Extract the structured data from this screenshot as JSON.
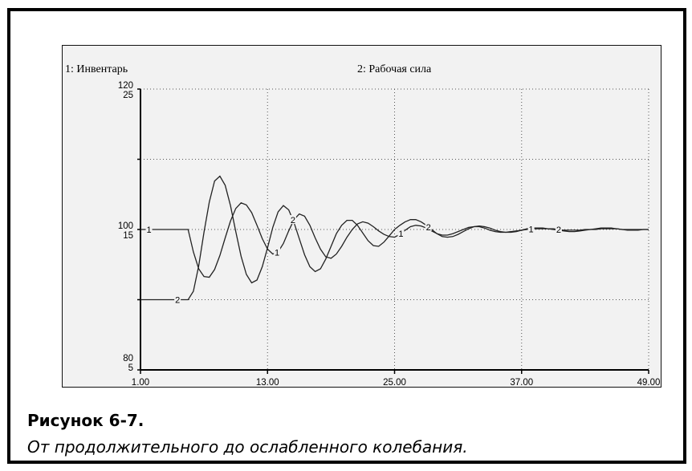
{
  "figure": {
    "caption_title": "Рисунок 6-7.",
    "caption_subtitle": "От продолжительного до ослабленного колебания."
  },
  "chart_data": {
    "type": "line",
    "x_ticks": [
      "1.00",
      "13.00",
      "25.00",
      "37.00",
      "49.00"
    ],
    "xlim": [
      1,
      49
    ],
    "y_axes": [
      {
        "ticks_top": "120",
        "ticks_mid": "100",
        "ticks_bottom": "80",
        "ylim": [
          80,
          120
        ]
      },
      {
        "ticks_top": "25",
        "ticks_mid": "15",
        "ticks_bottom": "5",
        "ylim": [
          5,
          25
        ]
      }
    ],
    "grid": true,
    "grid_style": "dotted",
    "colors": {
      "panel": "#f2f2f2",
      "line": "#222222",
      "grid": "#555555",
      "frame": "#000000"
    },
    "series": [
      {
        "name": "1: Инвентарь",
        "marker": "1",
        "axis": 0,
        "x": [
          1,
          2,
          3,
          4,
          5,
          5.5,
          6,
          6.5,
          7,
          7.5,
          8,
          8.5,
          9,
          9.5,
          10,
          10.5,
          11,
          11.5,
          12,
          12.5,
          13,
          13.5,
          14,
          14.5,
          15,
          15.5,
          16,
          16.5,
          17,
          17.5,
          18,
          18.5,
          19,
          19.5,
          20,
          20.5,
          21,
          21.5,
          22,
          22.5,
          23,
          23.5,
          24,
          24.5,
          25,
          25.5,
          26,
          26.5,
          27,
          27.5,
          28,
          28.5,
          29,
          29.5,
          30,
          30.5,
          31,
          31.5,
          32,
          32.5,
          33,
          33.5,
          34,
          34.5,
          35,
          35.5,
          36,
          36.5,
          37,
          37.5,
          38,
          38.5,
          39,
          39.5,
          40,
          40.5,
          41,
          41.5,
          42,
          42.5,
          43,
          43.5,
          44,
          44.5,
          45,
          45.5,
          46,
          46.5,
          47,
          47.5,
          48,
          48.5,
          49
        ],
        "y": [
          100,
          100,
          100,
          100,
          100,
          100,
          96.8,
          94.4,
          93.3,
          93.2,
          94.3,
          96.3,
          98.8,
          101.2,
          103.0,
          103.8,
          103.5,
          102.4,
          100.6,
          98.7,
          97.2,
          96.5,
          96.8,
          98.0,
          99.8,
          101.4,
          102.2,
          101.9,
          100.6,
          98.8,
          97.2,
          96.1,
          95.9,
          96.5,
          97.6,
          98.9,
          100.0,
          100.8,
          101.1,
          100.9,
          100.4,
          99.8,
          99.3,
          99.0,
          98.9,
          99.3,
          99.9,
          100.4,
          100.6,
          100.5,
          100.2,
          99.8,
          99.4,
          99.2,
          99.2,
          99.4,
          99.7,
          100.0,
          100.3,
          100.4,
          100.4,
          100.2,
          99.9,
          99.7,
          99.6,
          99.6,
          99.7,
          99.8,
          99.9,
          100.0,
          100.1,
          100.1,
          100.1,
          100.1,
          100.0,
          99.9,
          99.8,
          99.7,
          99.7,
          99.8,
          99.9,
          100.0,
          100.1,
          100.2,
          100.2,
          100.2,
          100.1,
          100.0,
          99.9,
          99.9,
          99.9,
          100.0,
          100.0
        ]
      },
      {
        "name": "2: Рабочая сила",
        "marker": "2",
        "axis": 0,
        "x": [
          1,
          2,
          3,
          4,
          5,
          5.5,
          6,
          6.5,
          7,
          7.5,
          8,
          8.5,
          9,
          9.5,
          10,
          10.5,
          11,
          11.5,
          12,
          12.5,
          13,
          13.5,
          14,
          14.5,
          15,
          15.5,
          16,
          16.5,
          17,
          17.5,
          18,
          18.5,
          19,
          19.5,
          20,
          20.5,
          21,
          21.5,
          22,
          22.5,
          23,
          23.5,
          24,
          24.5,
          25,
          25.5,
          26,
          26.5,
          27,
          27.5,
          28,
          28.5,
          29,
          29.5,
          30,
          30.5,
          31,
          31.5,
          32,
          32.5,
          33,
          33.5,
          34,
          34.5,
          35,
          35.5,
          36,
          36.5,
          37,
          37.5,
          38,
          38.5,
          39,
          39.5,
          40,
          40.5,
          41,
          41.5,
          42,
          42.5,
          43,
          43.5,
          44,
          44.5,
          45,
          45.5,
          46,
          46.5,
          47,
          47.5,
          48,
          48.5,
          49
        ],
        "y": [
          90,
          90,
          90,
          90,
          90,
          90,
          91.2,
          94.8,
          99.6,
          103.9,
          106.9,
          107.6,
          106.3,
          103.4,
          99.7,
          96.2,
          93.6,
          92.4,
          92.8,
          94.7,
          97.4,
          100.3,
          102.5,
          103.4,
          102.8,
          101.0,
          98.7,
          96.4,
          94.7,
          94.0,
          94.4,
          95.8,
          97.6,
          99.4,
          100.6,
          101.3,
          101.3,
          100.6,
          99.5,
          98.4,
          97.7,
          97.6,
          98.2,
          99.1,
          100.0,
          100.6,
          101.1,
          101.4,
          101.4,
          101.1,
          100.6,
          100.0,
          99.4,
          99.0,
          98.9,
          99.0,
          99.3,
          99.7,
          100.1,
          100.4,
          100.5,
          100.4,
          100.2,
          99.9,
          99.7,
          99.6,
          99.6,
          99.7,
          99.9,
          100.1,
          100.2,
          100.2,
          100.2,
          100.1,
          100.1,
          100.0,
          99.9,
          99.9,
          99.9,
          99.9,
          100.0,
          100.0,
          100.0,
          100.1,
          100.1,
          100.1,
          100.1,
          100.0,
          100.0,
          100.0,
          100.0,
          100.0,
          100.0
        ]
      }
    ],
    "marker_positions": {
      "1": [
        1.8,
        13.9,
        25.6,
        37.9
      ],
      "2": [
        4.5,
        15.4,
        28.2,
        40.5
      ]
    }
  }
}
